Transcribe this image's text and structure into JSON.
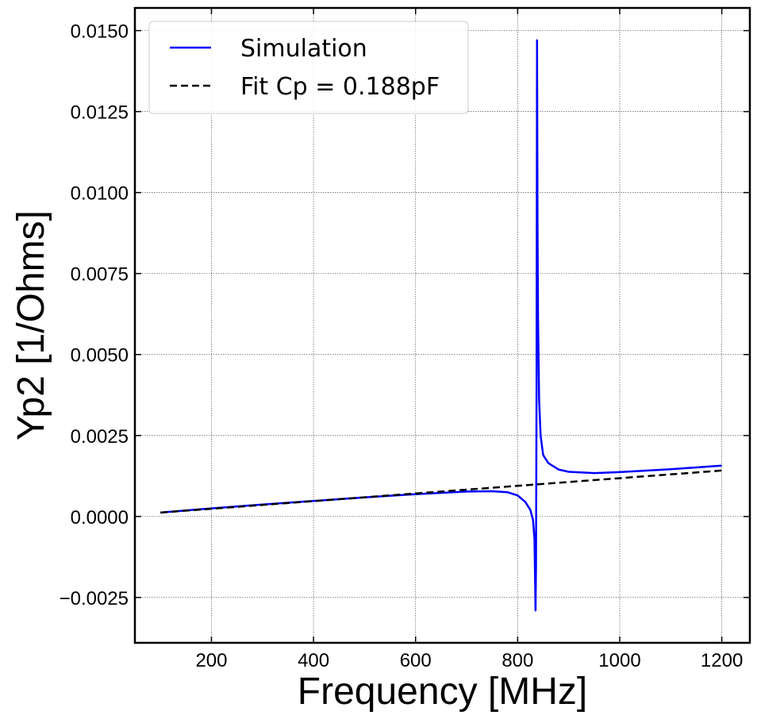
{
  "chart_data": {
    "type": "line",
    "xlabel": "Frequency [MHz]",
    "ylabel": "Yp2 [1/Ohms]",
    "xlim": [
      50,
      1255
    ],
    "ylim": [
      -0.0039,
      0.0157
    ],
    "xticks": [
      200,
      400,
      600,
      800,
      1000,
      1200
    ],
    "xtick_labels": [
      "200",
      "400",
      "600",
      "800",
      "1000",
      "1200"
    ],
    "yticks": [
      -0.0025,
      0.0,
      0.0025,
      0.005,
      0.0075,
      0.01,
      0.0125,
      0.015
    ],
    "ytick_labels": [
      "−0.0025",
      "0.0000",
      "0.0025",
      "0.0050",
      "0.0075",
      "0.0100",
      "0.0125",
      "0.0150"
    ],
    "grid": true,
    "legend_position": "top-left",
    "series": [
      {
        "name": "Simulation",
        "color": "#0000ff",
        "style": "solid",
        "x": [
          100,
          200,
          300,
          400,
          500,
          600,
          700,
          750,
          780,
          800,
          815,
          825,
          830,
          833,
          835,
          836,
          837,
          838,
          839,
          840,
          842,
          845,
          850,
          860,
          880,
          900,
          950,
          1000,
          1100,
          1200
        ],
        "y": [
          0.00012,
          0.00025,
          0.00037,
          0.00048,
          0.00059,
          0.00069,
          0.00077,
          0.00078,
          0.00075,
          0.00065,
          0.00045,
          0.0002,
          -0.0001,
          -0.0007,
          -0.0029,
          -0.0015,
          0.004,
          0.0147,
          0.009,
          0.006,
          0.0036,
          0.0025,
          0.0019,
          0.00165,
          0.00145,
          0.00138,
          0.00134,
          0.00137,
          0.00146,
          0.00157
        ]
      },
      {
        "name": "Fit Cp = 0.188pF",
        "color": "#000000",
        "style": "dashed",
        "x": [
          100,
          1200
        ],
        "y": [
          0.00012,
          0.00142
        ]
      }
    ]
  }
}
